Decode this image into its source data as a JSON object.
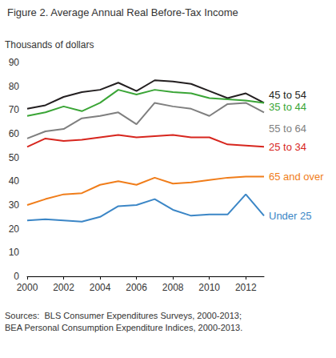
{
  "chart_data": {
    "type": "line",
    "title": "Figure 2. Average Annual Real Before-Tax Income",
    "ylabel": "Thousands of dollars",
    "source": [
      "Sources:  BLS Consumer Expenditures Surveys, 2000-2013;",
      "BEA Personal Consumption Expenditure Indices, 2000-2013."
    ],
    "x": [
      2000,
      2001,
      2002,
      2003,
      2004,
      2005,
      2006,
      2007,
      2008,
      2009,
      2010,
      2011,
      2012,
      2013
    ],
    "series": [
      {
        "name": "45 to 54",
        "color": "#231f20",
        "values": [
          70.5,
          72,
          75.5,
          77.5,
          78.5,
          81.5,
          78,
          82.5,
          82,
          81,
          78,
          75,
          77,
          73
        ]
      },
      {
        "name": "35 to 44",
        "color": "#3aa536",
        "values": [
          67.5,
          69,
          71.5,
          69.5,
          73,
          78.5,
          76.5,
          78.5,
          77.5,
          77,
          75,
          74.5,
          74,
          73
        ]
      },
      {
        "name": "55 to 64",
        "color": "#7f7f7f",
        "values": [
          58,
          61,
          62,
          66.5,
          67.5,
          69,
          64,
          73,
          71.5,
          70.5,
          67.5,
          72.5,
          73,
          69
        ]
      },
      {
        "name": "25 to 34",
        "color": "#d7261e",
        "values": [
          54.5,
          58,
          57,
          57.5,
          58.5,
          59.5,
          58.5,
          59,
          59.5,
          58.5,
          58.5,
          55.5,
          55,
          54.5
        ]
      },
      {
        "name": "65 and over",
        "color": "#f07d1a",
        "values": [
          30,
          32.5,
          34.5,
          35,
          38.5,
          40,
          38.5,
          41.5,
          39,
          39.5,
          40.5,
          41.5,
          42,
          42
        ]
      },
      {
        "name": "Under 25",
        "color": "#3b86c6",
        "values": [
          23.5,
          24,
          23.5,
          23,
          25,
          29.5,
          30,
          32.5,
          28,
          25.5,
          26,
          26,
          34.5,
          25.5
        ]
      }
    ],
    "xlim": [
      2000,
      2013
    ],
    "xticks": [
      2000,
      2002,
      2004,
      2006,
      2008,
      2010,
      2012
    ],
    "ylim": [
      0,
      90
    ],
    "yticks": [
      0,
      10,
      20,
      30,
      40,
      50,
      60,
      70,
      80,
      90
    ],
    "grid": false,
    "legend": "right"
  }
}
